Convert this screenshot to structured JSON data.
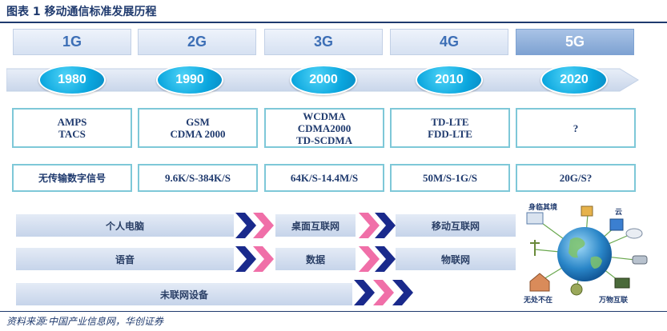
{
  "figure": {
    "title": "图表 1   移动通信标准发展历程",
    "source": "资料来源:中国产业信息网，华创证券"
  },
  "generations": [
    {
      "label": "1G",
      "year": "1980",
      "standards": [
        "AMPS",
        "TACS"
      ],
      "speed": "无传输数字信号"
    },
    {
      "label": "2G",
      "year": "1990",
      "standards": [
        "GSM",
        "CDMA 2000"
      ],
      "speed": "9.6K/S-384K/S"
    },
    {
      "label": "3G",
      "year": "2000",
      "standards": [
        "WCDMA",
        "CDMA2000",
        "TD-SCDMA"
      ],
      "speed": "64K/S-14.4M/S"
    },
    {
      "label": "4G",
      "year": "2010",
      "standards": [
        "TD-LTE",
        "FDD-LTE"
      ],
      "speed": "50M/S-1G/S"
    },
    {
      "label": "5G",
      "year": "2020",
      "standards": [
        "?"
      ],
      "speed": "20G/S?"
    }
  ],
  "applications": {
    "row1": [
      "个人电脑",
      "桌面互联网",
      "移动互联网"
    ],
    "row2": [
      "语音",
      "数据",
      "物联网"
    ],
    "row3": [
      "未联网设备"
    ]
  },
  "iot_labels": {
    "top_left": "身临其境",
    "top_right": "云",
    "bottom_left": "无处不在",
    "bottom_right": "万物互联"
  },
  "colors": {
    "navy": "#1f3a6e",
    "chevron_dark": "#1a2a8c",
    "chevron_pink": "#f06fa8",
    "oval": "#0aa6de"
  }
}
